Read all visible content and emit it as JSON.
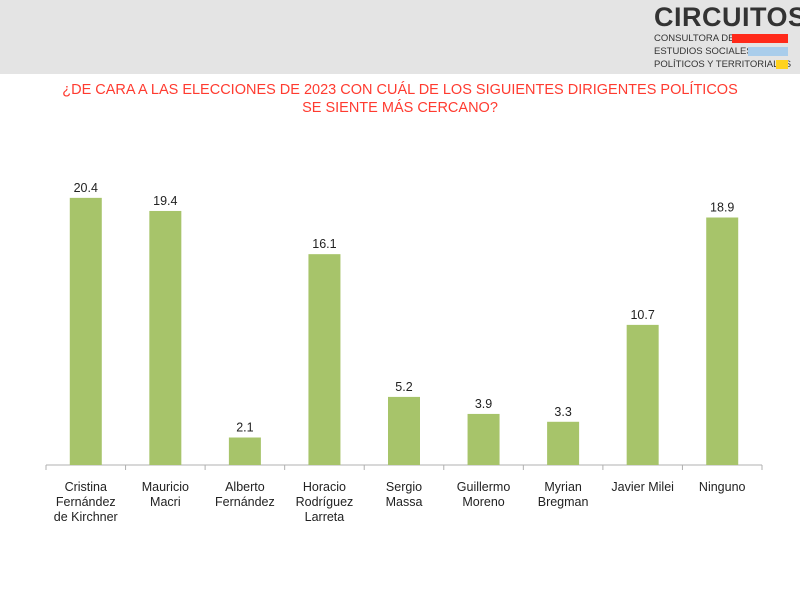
{
  "logo": {
    "word": "CIRCUITOS",
    "line1": "CONSULTORA DE",
    "line2": "ESTUDIOS SOCIALES,",
    "line3": "POLÍTICOS Y TERRITORIALES",
    "colors": [
      "#ff2a1a",
      "#a9cdeb",
      "#ffd21f"
    ]
  },
  "title_lines": [
    "¿DE CARA A LAS ELECCIONES DE 2023 CON CUÁL DE LOS SIGUIENTES DIRIGENTES POLÍTICOS",
    "SE SIENTE MÁS CERCANO?"
  ],
  "colors": {
    "bar": "#a7c46a",
    "title": "#ff3b30",
    "axis": "#b0b0b0",
    "text": "#222222"
  },
  "chart_data": {
    "type": "bar",
    "title": "¿DE CARA A LAS ELECCIONES DE 2023 CON CUÁL DE LOS SIGUIENTES DIRIGENTES POLÍTICOS SE SIENTE MÁS CERCANO?",
    "categories": [
      [
        "Cristina",
        "Fernández",
        "de Kirchner"
      ],
      [
        "Mauricio",
        "Macri"
      ],
      [
        "Alberto",
        "Fernández"
      ],
      [
        "Horacio",
        "Rodríguez",
        "Larreta"
      ],
      [
        "Sergio",
        "Massa"
      ],
      [
        "Guillermo",
        "Moreno"
      ],
      [
        "Myrian",
        "Bregman"
      ],
      [
        "Javier Milei"
      ],
      [
        "Ninguno"
      ]
    ],
    "values": [
      20.4,
      19.4,
      2.1,
      16.1,
      5.2,
      3.9,
      3.3,
      10.7,
      18.9
    ],
    "value_labels": [
      "20.4",
      "19.4",
      "2.1",
      "16.1",
      "5.2",
      "3.9",
      "3.3",
      "10.7",
      "18.9"
    ],
    "ylim": [
      0,
      21
    ],
    "grid": false,
    "legend": "none"
  }
}
